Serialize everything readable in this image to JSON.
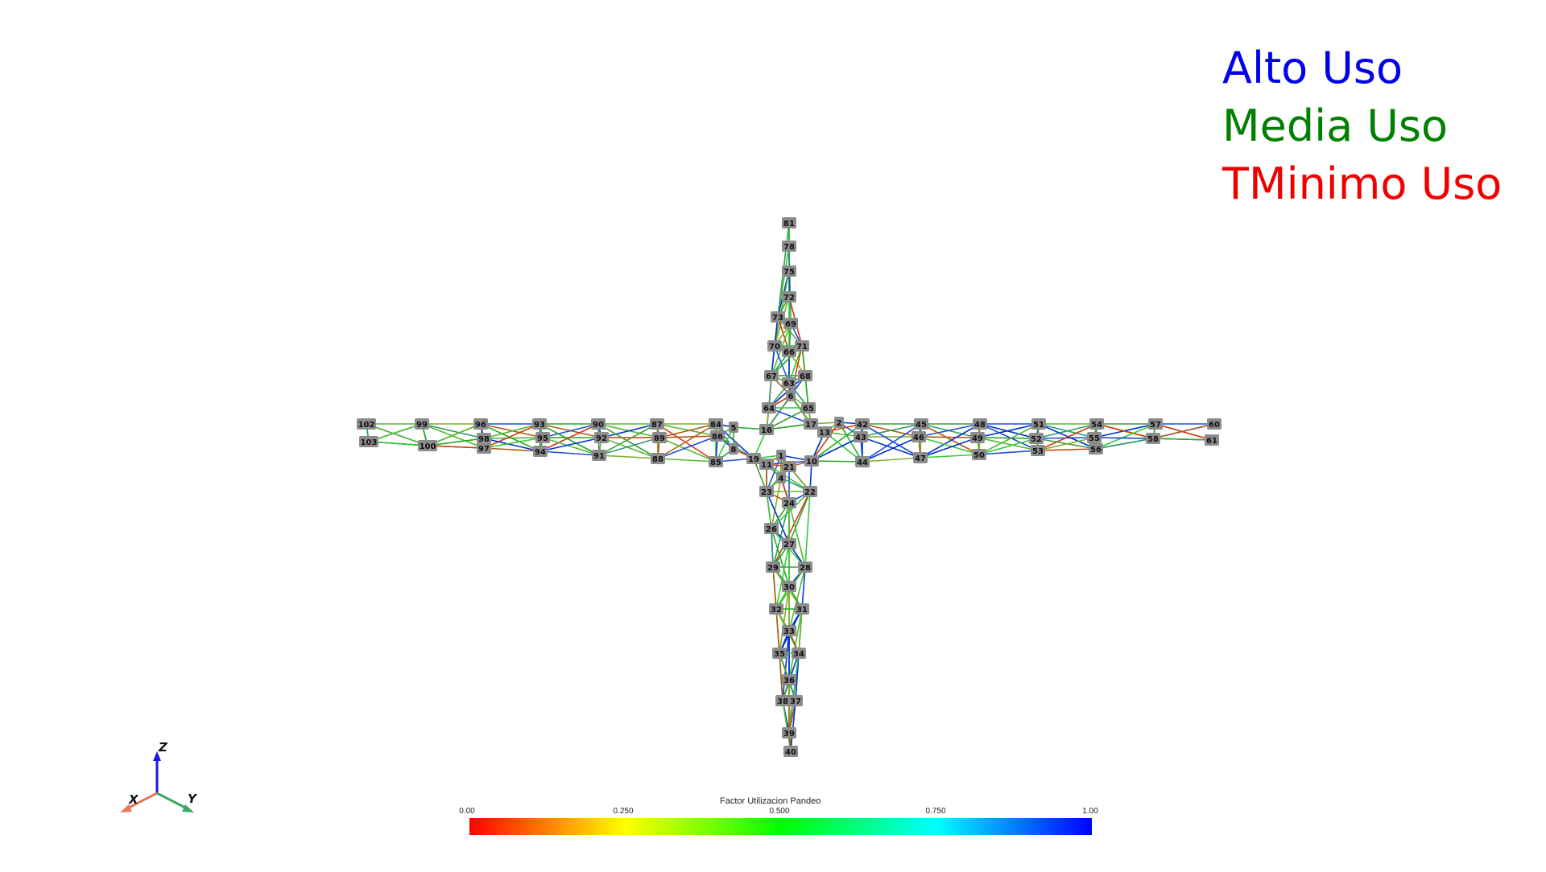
{
  "legend": {
    "high_label": "Alto Uso",
    "mid_label": "Media Uso",
    "low_label": "TMinimo Uso",
    "high_color": "#0000ee",
    "mid_color": "#008000",
    "low_color": "#ee0000"
  },
  "colorbar": {
    "title": "Factor Utilizacion Pandeo",
    "ticks": [
      "0.00",
      "0.250",
      "0.500",
      "0.750",
      "1.00"
    ],
    "colors": [
      "#ff0000",
      "#ffff00",
      "#00ff00",
      "#00ffff",
      "#0000ff"
    ]
  },
  "axes": {
    "x_label": "X",
    "y_label": "Y",
    "z_label": "Z",
    "x_color": "#e8785a",
    "y_color": "#3aa86a",
    "z_color": "#1a1ae0"
  },
  "structure": {
    "top_arm": {
      "nodes": [
        "81",
        "78",
        "75",
        "72",
        "73",
        "69",
        "70",
        "66",
        "71",
        "67",
        "63",
        "68",
        "6",
        "64",
        "65",
        "16",
        "17"
      ]
    },
    "bottom_arm": {
      "nodes": [
        "1",
        "11",
        "21",
        "4",
        "23",
        "22",
        "24",
        "26",
        "27",
        "29",
        "28",
        "30",
        "32",
        "31",
        "33",
        "35",
        "34",
        "36",
        "38",
        "37",
        "39",
        "40"
      ]
    },
    "left_arm": {
      "nodes": [
        "102",
        "103",
        "99",
        "100",
        "96",
        "98",
        "97",
        "93",
        "95",
        "94",
        "90",
        "92",
        "91",
        "87",
        "89",
        "88",
        "84",
        "86",
        "85",
        "5",
        "8",
        "19"
      ]
    },
    "right_arm": {
      "nodes": [
        "2",
        "13",
        "10",
        "42",
        "43",
        "44",
        "45",
        "46",
        "47",
        "48",
        "49",
        "50",
        "51",
        "52",
        "53",
        "54",
        "55",
        "56",
        "57",
        "58",
        "60",
        "61"
      ]
    }
  }
}
